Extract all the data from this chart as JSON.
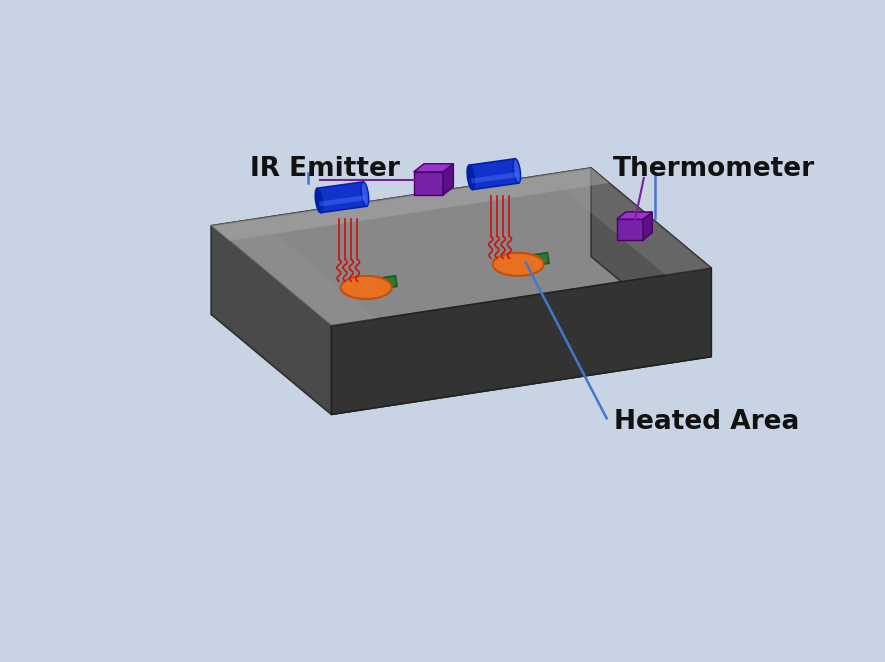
{
  "background_color": "#c8d4e3",
  "labels": {
    "ir_emitter": "IR Emitter",
    "thermometer": "Thermometer",
    "heated_area": "Heated Area"
  },
  "label_fontsize": 19,
  "label_color": "#111111",
  "box": {
    "color_top": "#888888",
    "color_top_light": "#aaaaaa",
    "color_front": "#333333",
    "color_right": "#555555",
    "color_left": "#444444",
    "color_edge": "#222222"
  },
  "ir_emitter_color": "#1133cc",
  "ir_emitter_light": "#3355ee",
  "ir_emitter_dark": "#0022aa",
  "thermometer_color": "#7722aa",
  "thermometer_top": "#9933cc",
  "thermometer_side": "#5a1188",
  "heated_pad_color": "#e87020",
  "green_pad_color": "#2a7a30",
  "wire_color": "#cc1111",
  "annotation_line_color": "#4477cc",
  "annotation_line_color2": "#772299"
}
